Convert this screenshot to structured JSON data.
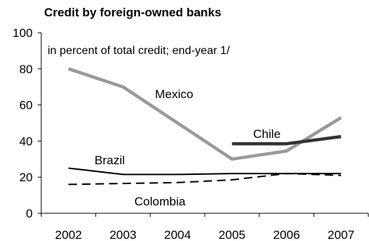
{
  "chart_data": {
    "type": "line",
    "title": "Credit by foreign-owned banks",
    "subtitle": "in percent of total credit; end-year 1/",
    "xlabel": "",
    "ylabel": "",
    "categories": [
      "2002",
      "2003",
      "2004",
      "2005",
      "2006",
      "2007"
    ],
    "ylim": [
      0,
      100
    ],
    "yticks": [
      0,
      20,
      40,
      60,
      80,
      100
    ],
    "grid": false,
    "legend": "inline labels",
    "series": [
      {
        "name": "Mexico",
        "color": "#999999",
        "dash": "solid",
        "values": [
          80,
          70,
          50,
          30,
          34.5,
          53
        ]
      },
      {
        "name": "Chile",
        "color": "#333333",
        "dash": "solid",
        "values": [
          null,
          null,
          null,
          38.5,
          38.5,
          42.5
        ]
      },
      {
        "name": "Brazil",
        "color": "#000000",
        "dash": "solid",
        "values": [
          25,
          21.5,
          21.5,
          22,
          22,
          22
        ]
      },
      {
        "name": "Colombia",
        "color": "#000000",
        "dash": "dashed",
        "values": [
          16,
          16.5,
          17,
          18.5,
          22,
          21
        ]
      }
    ]
  }
}
